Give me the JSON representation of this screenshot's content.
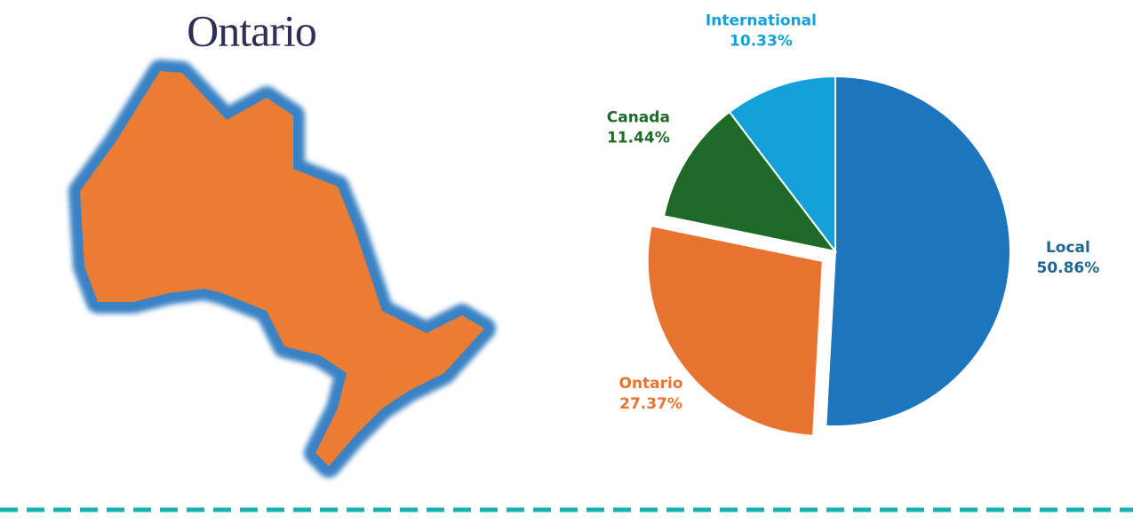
{
  "map": {
    "title": "Ontario"
  },
  "chart_data": {
    "type": "pie",
    "categories": [
      "Local",
      "Ontario",
      "Canada",
      "International"
    ],
    "values": [
      50.86,
      27.37,
      11.44,
      10.33
    ],
    "value_labels": [
      "50.86%",
      "27.37%",
      "11.44%",
      "10.33%"
    ],
    "colors": [
      "#1c75bd",
      "#e87230",
      "#1d6a29",
      "#14a0d9"
    ],
    "label_colors": [
      "#1f6790",
      "#e87230",
      "#1d6a29",
      "#14a0d9"
    ]
  }
}
